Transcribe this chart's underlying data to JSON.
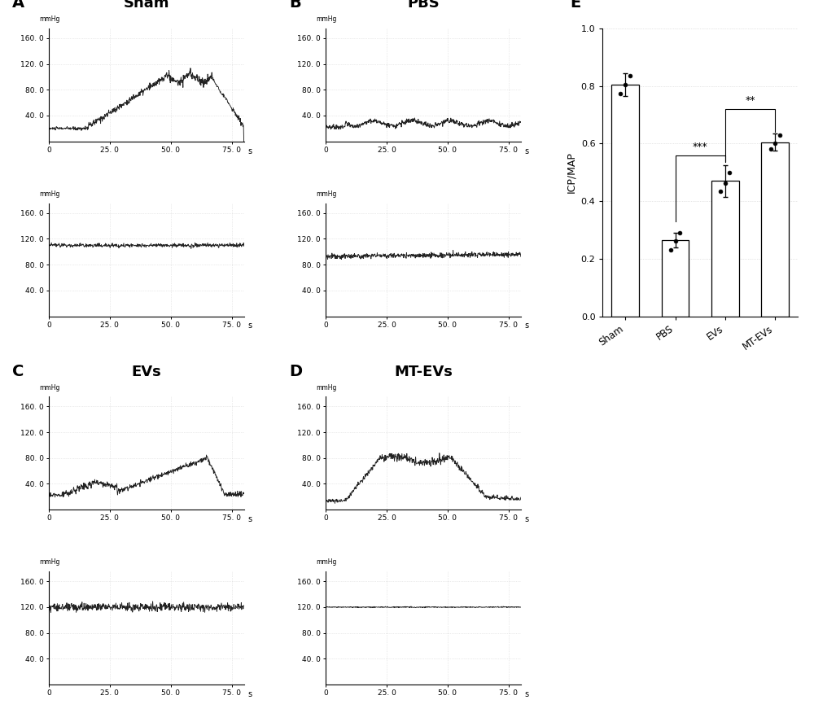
{
  "bar_categories": [
    "Sham",
    "PBS",
    "EVs",
    "MT-EVs"
  ],
  "bar_values": [
    0.805,
    0.265,
    0.47,
    0.605
  ],
  "bar_errors": [
    0.04,
    0.025,
    0.055,
    0.03
  ],
  "bar_color": "#ffffff",
  "bar_edge_color": "#000000",
  "ylabel_E": "ICP/MAP",
  "dot_data": {
    "Sham": [
      0.775,
      0.805,
      0.835
    ],
    "PBS": [
      0.23,
      0.262,
      0.29
    ],
    "EVs": [
      0.435,
      0.462,
      0.5
    ],
    "MT-EVs": [
      0.58,
      0.6,
      0.63
    ]
  },
  "background_color": "#ffffff",
  "line_color": "#222222",
  "grid_color": "#cccccc"
}
